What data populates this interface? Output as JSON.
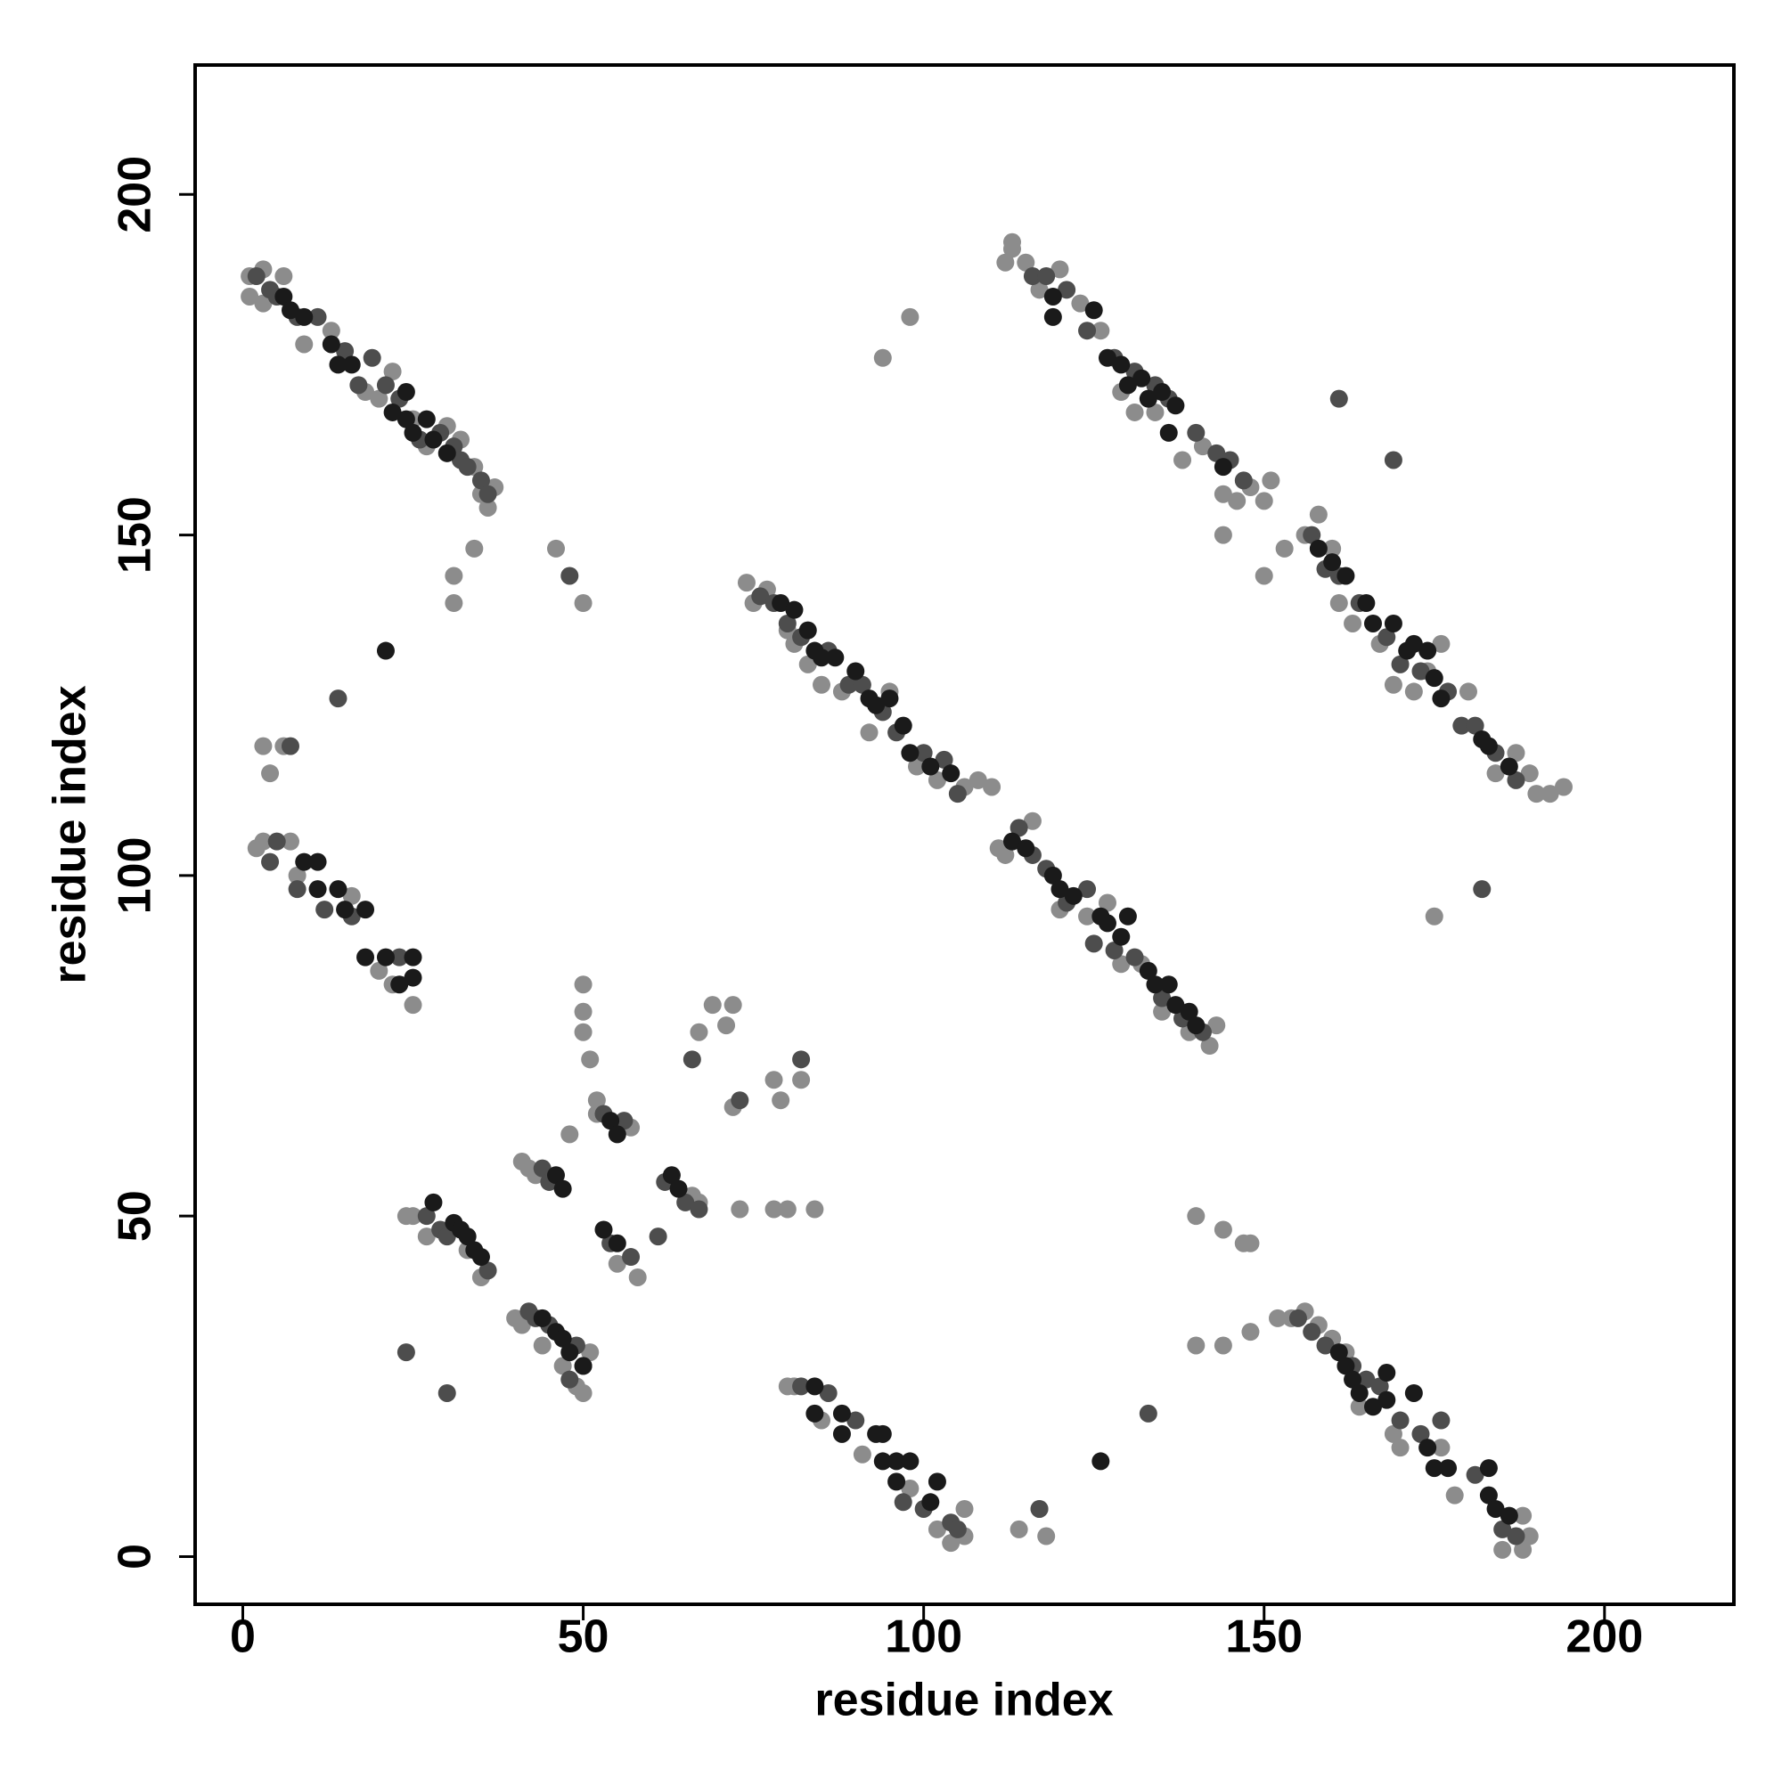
{
  "chart_data": {
    "type": "scatter",
    "xlabel": "residue index",
    "ylabel": "residue index",
    "xlim": [
      -7,
      219
    ],
    "ylim": [
      -7,
      219
    ],
    "xticks": [
      0,
      50,
      100,
      150,
      200
    ],
    "yticks": [
      0,
      50,
      100,
      150,
      200
    ],
    "series": [
      {
        "color": "#8c8c8c",
        "x": [
          1,
          1,
          3,
          3,
          6,
          9,
          13,
          18,
          20,
          22,
          25,
          27,
          30,
          32,
          34,
          35,
          36,
          37,
          3,
          2,
          7,
          8,
          16,
          20,
          22,
          25,
          3,
          4,
          6,
          74,
          75,
          77,
          80,
          81,
          83,
          85,
          88,
          92,
          95,
          99,
          102,
          106,
          108,
          110,
          111,
          112,
          116,
          120,
          124,
          127,
          129,
          132,
          135,
          139,
          142,
          143,
          112,
          113,
          113,
          115,
          117,
          120,
          123,
          126,
          129,
          131,
          134,
          138,
          141,
          144,
          146,
          148,
          150,
          151,
          144,
          150,
          153,
          156,
          158,
          160,
          161,
          163,
          167,
          169,
          172,
          174,
          176,
          180,
          184,
          187,
          189,
          190,
          192,
          194,
          98,
          94,
          175,
          24,
          25,
          27,
          33,
          35,
          41,
          42,
          43,
          40,
          41,
          44,
          47,
          49,
          50,
          51,
          52,
          52,
          57,
          55,
          58,
          66,
          67,
          80,
          81,
          85,
          91,
          98,
          102,
          104,
          106,
          106,
          152,
          154,
          156,
          158,
          160,
          162,
          164,
          169,
          170,
          176,
          178,
          185,
          188,
          189,
          188,
          117,
          114,
          118,
          34,
          31,
          31,
          46,
          50,
          140,
          144,
          147,
          148,
          140,
          144,
          148,
          50,
          50,
          51,
          50,
          48,
          67,
          69,
          72,
          71,
          72,
          78,
          79,
          82,
          73,
          78,
          80,
          84
        ],
        "y": [
          188,
          185,
          189,
          184,
          188,
          178,
          180,
          171,
          170,
          174,
          167,
          163,
          166,
          164,
          160,
          156,
          154,
          157,
          105,
          104,
          105,
          100,
          97,
          86,
          84,
          81,
          119,
          115,
          119,
          143,
          140,
          142,
          136,
          134,
          131,
          128,
          127,
          121,
          127,
          116,
          114,
          113,
          114,
          113,
          104,
          103,
          108,
          95,
          94,
          96,
          87,
          87,
          80,
          77,
          75,
          78,
          190,
          193,
          192,
          190,
          186,
          189,
          184,
          180,
          171,
          168,
          168,
          161,
          163,
          156,
          155,
          157,
          155,
          158,
          150,
          144,
          148,
          150,
          153,
          148,
          140,
          137,
          134,
          128,
          127,
          130,
          134,
          127,
          115,
          118,
          115,
          112,
          112,
          113,
          182,
          176,
          94,
          50,
          50,
          47,
          45,
          41,
          58,
          57,
          56,
          35,
          34,
          31,
          28,
          25,
          24,
          30,
          65,
          67,
          63,
          43,
          41,
          53,
          52,
          25,
          25,
          20,
          15,
          10,
          4,
          2,
          3,
          7,
          35,
          35,
          36,
          34,
          32,
          30,
          22,
          18,
          16,
          16,
          9,
          1,
          1,
          3,
          6,
          7,
          4,
          3,
          148,
          140,
          144,
          148,
          140,
          50,
          48,
          46,
          46,
          31,
          31,
          33,
          84,
          80,
          73,
          77,
          62,
          77,
          81,
          81,
          78,
          66,
          70,
          67,
          70,
          51,
          51,
          51,
          51
        ]
      },
      {
        "color": "#4d4d4d",
        "x": [
          2,
          4,
          5,
          8,
          11,
          15,
          17,
          19,
          21,
          23,
          26,
          29,
          31,
          32,
          33,
          35,
          36,
          5,
          4,
          8,
          12,
          16,
          23,
          7,
          76,
          78,
          80,
          82,
          86,
          89,
          91,
          94,
          96,
          100,
          103,
          105,
          114,
          116,
          118,
          121,
          124,
          125,
          128,
          131,
          135,
          138,
          141,
          116,
          118,
          121,
          124,
          128,
          131,
          134,
          136,
          140,
          143,
          145,
          147,
          157,
          159,
          161,
          164,
          168,
          170,
          173,
          177,
          179,
          181,
          184,
          187,
          27,
          29,
          30,
          36,
          42,
          43,
          45,
          49,
          50,
          44,
          45,
          53,
          56,
          54,
          57,
          62,
          65,
          67,
          48,
          82,
          86,
          90,
          97,
          100,
          104,
          105,
          155,
          157,
          159,
          163,
          165,
          167,
          170,
          173,
          176,
          181,
          185,
          187,
          14,
          24,
          30,
          133,
          161,
          169,
          182,
          66,
          73,
          82,
          61,
          117,
          48
        ],
        "y": [
          188,
          186,
          185,
          182,
          182,
          177,
          172,
          176,
          172,
          170,
          164,
          165,
          163,
          161,
          160,
          158,
          156,
          105,
          102,
          98,
          95,
          94,
          88,
          119,
          141,
          140,
          137,
          135,
          133,
          128,
          128,
          124,
          121,
          118,
          117,
          112,
          107,
          103,
          101,
          96,
          98,
          90,
          89,
          88,
          82,
          79,
          77,
          188,
          188,
          186,
          180,
          176,
          174,
          172,
          170,
          165,
          162,
          161,
          158,
          150,
          145,
          144,
          140,
          135,
          131,
          130,
          127,
          122,
          122,
          118,
          114,
          50,
          48,
          47,
          42,
          36,
          35,
          34,
          31,
          28,
          57,
          55,
          65,
          64,
          46,
          44,
          55,
          52,
          51,
          26,
          25,
          24,
          20,
          8,
          7,
          5,
          4,
          35,
          33,
          31,
          28,
          26,
          25,
          20,
          18,
          20,
          12,
          4,
          3,
          126,
          30,
          24,
          21,
          170,
          161,
          98,
          73,
          67,
          73,
          47,
          7,
          144
        ]
      },
      {
        "color": "#1a1a1a",
        "x": [
          6,
          7,
          9,
          13,
          14,
          16,
          22,
          24,
          25,
          27,
          28,
          24,
          30,
          9,
          11,
          11,
          14,
          15,
          18,
          18,
          21,
          23,
          25,
          25,
          79,
          81,
          83,
          84,
          85,
          87,
          90,
          92,
          93,
          95,
          97,
          98,
          101,
          104,
          113,
          115,
          119,
          120,
          122,
          126,
          127,
          129,
          130,
          133,
          134,
          136,
          137,
          139,
          140,
          119,
          119,
          125,
          127,
          129,
          130,
          132,
          133,
          135,
          137,
          136,
          144,
          158,
          160,
          162,
          165,
          166,
          169,
          171,
          172,
          174,
          175,
          176,
          182,
          183,
          186,
          28,
          31,
          32,
          33,
          34,
          35,
          44,
          46,
          47,
          48,
          50,
          46,
          47,
          54,
          55,
          53,
          55,
          63,
          64,
          84,
          84,
          88,
          88,
          94,
          94,
          96,
          96,
          98,
          101,
          102,
          93,
          161,
          162,
          163,
          164,
          166,
          168,
          168,
          172,
          174,
          175,
          177,
          183,
          183,
          184,
          186,
          21,
          126
        ],
        "y": [
          185,
          183,
          182,
          178,
          175,
          175,
          168,
          167,
          165,
          167,
          164,
          171,
          162,
          102,
          102,
          98,
          98,
          95,
          95,
          88,
          88,
          84,
          85,
          88,
          140,
          139,
          136,
          133,
          132,
          132,
          130,
          126,
          125,
          126,
          122,
          118,
          116,
          115,
          105,
          104,
          100,
          98,
          97,
          94,
          93,
          91,
          94,
          86,
          84,
          84,
          81,
          80,
          78,
          185,
          182,
          183,
          176,
          175,
          172,
          173,
          170,
          171,
          169,
          165,
          160,
          148,
          146,
          144,
          140,
          137,
          137,
          133,
          134,
          133,
          129,
          126,
          120,
          119,
          116,
          52,
          49,
          48,
          47,
          45,
          44,
          35,
          33,
          32,
          30,
          28,
          56,
          54,
          64,
          62,
          48,
          46,
          56,
          54,
          25,
          21,
          21,
          18,
          18,
          14,
          14,
          11,
          14,
          8,
          11,
          18,
          30,
          28,
          26,
          24,
          22,
          27,
          23,
          24,
          16,
          13,
          13,
          13,
          9,
          7,
          6,
          133,
          14
        ]
      }
    ]
  }
}
